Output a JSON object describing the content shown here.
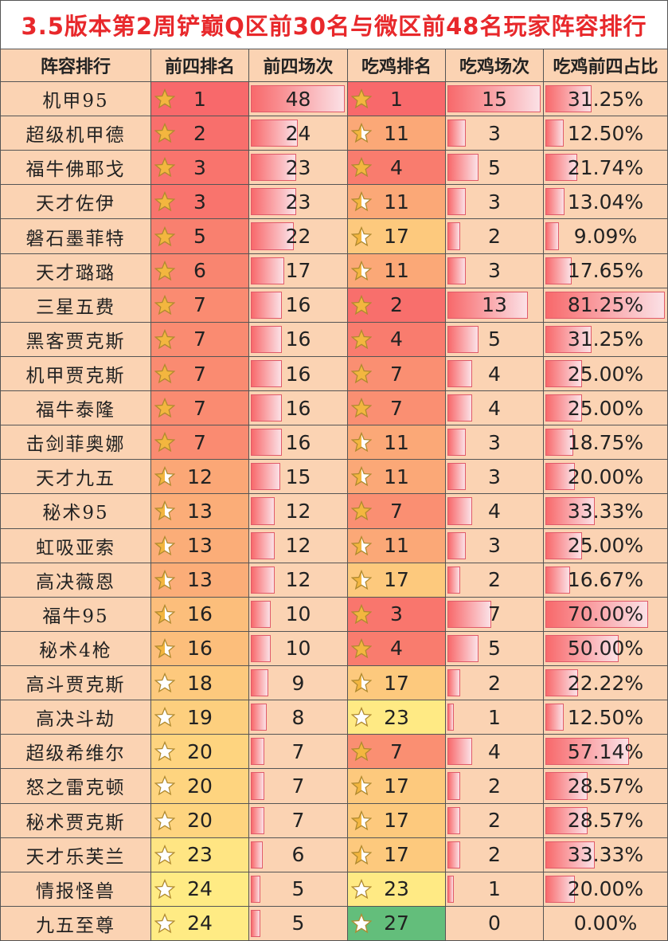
{
  "title": "3.5版本第2周铲巅Q区前30名与微区前48名玩家阵容排行",
  "table": {
    "header": [
      "阵容排行",
      "前四排名",
      "前四场次",
      "吃鸡排名",
      "吃鸡场次",
      "吃鸡前四占比"
    ],
    "rows": [
      [
        "机甲95",
        1,
        48,
        1,
        15,
        "31.25%"
      ],
      [
        "超级机甲德",
        2,
        24,
        11,
        3,
        "12.50%"
      ],
      [
        "福牛佛耶戈",
        3,
        23,
        4,
        5,
        "21.74%"
      ],
      [
        "天才佐伊",
        3,
        23,
        11,
        3,
        "13.04%"
      ],
      [
        "磐石墨菲特",
        5,
        22,
        17,
        2,
        "9.09%"
      ],
      [
        "天才璐璐",
        6,
        17,
        11,
        3,
        "17.65%"
      ],
      [
        "三星五费",
        7,
        16,
        2,
        13,
        "81.25%"
      ],
      [
        "黑客贾克斯",
        7,
        16,
        4,
        5,
        "31.25%"
      ],
      [
        "机甲贾克斯",
        7,
        16,
        7,
        4,
        "25.00%"
      ],
      [
        "福牛泰隆",
        7,
        16,
        7,
        4,
        "25.00%"
      ],
      [
        "击剑菲奥娜",
        7,
        16,
        11,
        3,
        "18.75%"
      ],
      [
        "天才九五",
        12,
        15,
        11,
        3,
        "20.00%"
      ],
      [
        "秘术95",
        13,
        12,
        7,
        4,
        "33.33%"
      ],
      [
        "虹吸亚索",
        13,
        12,
        11,
        3,
        "25.00%"
      ],
      [
        "高决薇恩",
        13,
        12,
        17,
        2,
        "16.67%"
      ],
      [
        "福牛95",
        16,
        10,
        3,
        7,
        "70.00%"
      ],
      [
        "秘术4枪",
        16,
        10,
        4,
        5,
        "50.00%"
      ],
      [
        "高斗贾克斯",
        18,
        9,
        17,
        2,
        "22.22%"
      ],
      [
        "高决斗劫",
        19,
        8,
        23,
        1,
        "12.50%"
      ],
      [
        "超级希维尔",
        20,
        7,
        7,
        4,
        "57.14%"
      ],
      [
        "怒之雷克顿",
        20,
        7,
        17,
        2,
        "28.57%"
      ],
      [
        "秘术贾克斯",
        20,
        7,
        17,
        2,
        "28.57%"
      ],
      [
        "天才乐芙兰",
        23,
        6,
        17,
        2,
        "33.33%"
      ],
      [
        "情报怪兽",
        24,
        5,
        23,
        1,
        "20.00%"
      ],
      [
        "九五至尊",
        24,
        5,
        27,
        0,
        "0.00%"
      ]
    ]
  }
}
